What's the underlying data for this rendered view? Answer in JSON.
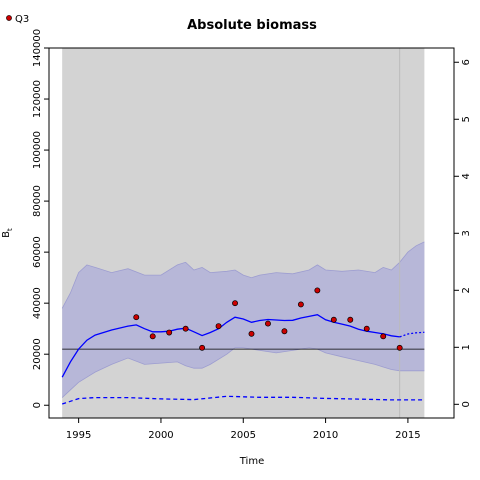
{
  "chart_data": {
    "type": "line",
    "title": "Absolute biomass",
    "xlabel": "Time",
    "ylabel": "B",
    "ylabel_sub": "t",
    "xlim": [
      1993.2,
      2017.8
    ],
    "ylim": [
      -5000,
      140000
    ],
    "y2lim": [
      -0.24,
      6.25
    ],
    "x_ticks": [
      1995,
      2000,
      2005,
      2010,
      2015
    ],
    "y_ticks": [
      0,
      20000,
      40000,
      60000,
      80000,
      100000,
      120000,
      140000
    ],
    "y2_ticks": [
      0,
      1,
      2,
      3,
      4,
      5,
      6
    ],
    "shaded_region": {
      "x": [
        1994,
        2016
      ],
      "color": "#d3d3d3"
    },
    "vertical_line": {
      "x": 2014.5,
      "color": "#bbbbbb"
    },
    "horizontal_line": {
      "y": 22000,
      "color": "#000000"
    },
    "colors": {
      "series": "#0000ff",
      "band": "#b7b7d8",
      "band_edge": "#9d9dd0",
      "points": "#cc0000"
    },
    "legend": {
      "position": "top-left",
      "entries": [
        "Q3"
      ]
    },
    "series": [
      {
        "type": "line",
        "x": [
          1994,
          1994.5,
          1995,
          1995.5,
          1996,
          1997,
          1998,
          1998.5,
          1999,
          1999.5,
          2000,
          2000.5,
          2001,
          2001.5,
          2002,
          2002.5,
          2003,
          2003.5,
          2004,
          2004.5,
          2005,
          2005.5,
          2006,
          2006.5,
          2007,
          2007.5,
          2008,
          2008.5,
          2009,
          2009.5,
          2010,
          2010.5,
          2011,
          2011.5,
          2012,
          2012.5,
          2013,
          2013.5,
          2014,
          2014.5
        ],
        "values": [
          11000,
          17000,
          22000,
          25500,
          27500,
          29500,
          31000,
          31500,
          30000,
          28800,
          28800,
          29000,
          29800,
          30200,
          28800,
          27300,
          28500,
          30000,
          32500,
          34500,
          33800,
          32500,
          33200,
          33600,
          33400,
          33200,
          33300,
          34200,
          34800,
          35500,
          33500,
          32500,
          31800,
          31000,
          29800,
          29000,
          28500,
          28000,
          27200,
          26800
        ]
      },
      {
        "type": "forecast",
        "x": [
          2014.5,
          2015,
          2015.5,
          2016
        ],
        "values": [
          26800,
          27900,
          28400,
          28600
        ]
      },
      {
        "type": "lower-dashed",
        "x": [
          1994,
          1995,
          1996,
          1998,
          2000,
          2002,
          2004,
          2006,
          2008,
          2010,
          2012,
          2014,
          2016
        ],
        "values": [
          500,
          2600,
          3000,
          3000,
          2500,
          2200,
          3500,
          3100,
          3100,
          2700,
          2400,
          2100,
          2100
        ]
      }
    ],
    "band": {
      "x": [
        1994,
        1994.5,
        1995,
        1995.5,
        1996,
        1997,
        1998,
        1999,
        2000,
        2001,
        2001.5,
        2002,
        2002.5,
        2003,
        2004,
        2004.5,
        2005,
        2005.5,
        2006,
        2007,
        2008,
        2009,
        2009.5,
        2010,
        2011,
        2012,
        2013,
        2013.5,
        2014,
        2014.5,
        2015,
        2015.5,
        2016
      ],
      "upper": [
        38000,
        44000,
        52000,
        55000,
        54000,
        52000,
        53500,
        51000,
        51000,
        55000,
        56000,
        53000,
        54000,
        52000,
        52500,
        53000,
        51000,
        50000,
        51000,
        52000,
        51500,
        53000,
        55000,
        53000,
        52500,
        53000,
        52000,
        54000,
        53000,
        56000,
        60000,
        62500,
        64000
      ],
      "lower": [
        3000,
        6000,
        9000,
        11000,
        13000,
        16000,
        18500,
        16000,
        16500,
        17000,
        15500,
        14500,
        14500,
        16000,
        20000,
        22500,
        22500,
        22000,
        21500,
        20500,
        21500,
        22500,
        22000,
        20500,
        19000,
        17500,
        16000,
        15000,
        14000,
        13500,
        13500,
        13500,
        13500
      ]
    },
    "points": {
      "name": "Q3",
      "x": [
        1998.5,
        1999.5,
        2000.5,
        2001.5,
        2002.5,
        2003.5,
        2004.5,
        2005.5,
        2006.5,
        2007.5,
        2008.5,
        2009.5,
        2010.5,
        2011.5,
        2012.5,
        2013.5,
        2014.5
      ],
      "values": [
        34500,
        27000,
        28500,
        30000,
        22500,
        31000,
        40000,
        28000,
        32000,
        29000,
        39500,
        45000,
        33500,
        33500,
        30000,
        27000,
        22500
      ]
    }
  }
}
